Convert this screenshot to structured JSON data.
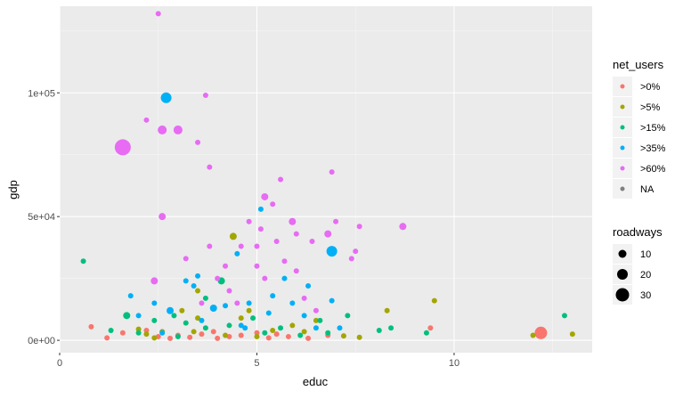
{
  "chart_data": {
    "type": "scatter",
    "title": "",
    "xlabel": "educ",
    "ylabel": "gdp",
    "xlim": [
      0,
      13.5
    ],
    "ylim": [
      -5000,
      135000
    ],
    "x_ticks": [
      0,
      5,
      10
    ],
    "x_tick_labels": [
      "0",
      "5",
      "10"
    ],
    "y_ticks": [
      0,
      50000,
      100000
    ],
    "y_tick_labels": [
      "0e+00",
      "5e+04",
      "1e+05"
    ],
    "grid": true,
    "panel_background": "#ebebeb",
    "legend_placement": "right",
    "color_legend": {
      "title": "net_users",
      "entries": [
        {
          "label": ">0%",
          "color": "#F8766D"
        },
        {
          "label": ">5%",
          "color": "#A3A500"
        },
        {
          "label": ">15%",
          "color": "#00BF7D"
        },
        {
          "label": ">35%",
          "color": "#00B0F6"
        },
        {
          "label": ">60%",
          "color": "#E76BF3"
        },
        {
          "label": "NA",
          "color": "#7f7f7f"
        }
      ]
    },
    "size_legend": {
      "title": "roadways",
      "entries": [
        {
          "label": "10",
          "value": 10
        },
        {
          "label": "20",
          "value": 20
        },
        {
          "label": "30",
          "value": 30
        }
      ]
    },
    "series": [
      {
        "name": ">0%",
        "points": [
          {
            "x": 0.8,
            "y": 5500,
            "r": 3
          },
          {
            "x": 1.2,
            "y": 1000,
            "r": 3
          },
          {
            "x": 1.6,
            "y": 3000,
            "r": 3
          },
          {
            "x": 2.5,
            "y": 1500,
            "r": 3
          },
          {
            "x": 2.8,
            "y": 800,
            "r": 3
          },
          {
            "x": 3.0,
            "y": 2000,
            "r": 3
          },
          {
            "x": 3.3,
            "y": 1200,
            "r": 3
          },
          {
            "x": 3.6,
            "y": 2500,
            "r": 3
          },
          {
            "x": 4.0,
            "y": 800,
            "r": 3
          },
          {
            "x": 4.3,
            "y": 1500,
            "r": 3
          },
          {
            "x": 4.6,
            "y": 2000,
            "r": 3
          },
          {
            "x": 5.0,
            "y": 3000,
            "r": 3
          },
          {
            "x": 5.3,
            "y": 1000,
            "r": 3
          },
          {
            "x": 5.5,
            "y": 2500,
            "r": 3
          },
          {
            "x": 5.8,
            "y": 1500,
            "r": 3
          },
          {
            "x": 6.3,
            "y": 800,
            "r": 3
          },
          {
            "x": 6.8,
            "y": 2000,
            "r": 3
          },
          {
            "x": 9.4,
            "y": 5000,
            "r": 3
          },
          {
            "x": 12.2,
            "y": 3000,
            "r": 7
          },
          {
            "x": 2.2,
            "y": 4000,
            "r": 3
          },
          {
            "x": 3.9,
            "y": 3500,
            "r": 3
          }
        ]
      },
      {
        "name": ">5%",
        "points": [
          {
            "x": 2.0,
            "y": 4500,
            "r": 3
          },
          {
            "x": 2.2,
            "y": 2500,
            "r": 3
          },
          {
            "x": 2.6,
            "y": 3500,
            "r": 3
          },
          {
            "x": 3.1,
            "y": 12000,
            "r": 3
          },
          {
            "x": 3.4,
            "y": 3500,
            "r": 3
          },
          {
            "x": 3.5,
            "y": 9000,
            "r": 3
          },
          {
            "x": 3.5,
            "y": 20000,
            "r": 3
          },
          {
            "x": 4.2,
            "y": 2000,
            "r": 3
          },
          {
            "x": 4.4,
            "y": 42000,
            "r": 4
          },
          {
            "x": 4.8,
            "y": 12000,
            "r": 3
          },
          {
            "x": 5.0,
            "y": 1500,
            "r": 3
          },
          {
            "x": 5.4,
            "y": 4000,
            "r": 3
          },
          {
            "x": 5.9,
            "y": 6000,
            "r": 3
          },
          {
            "x": 6.2,
            "y": 3500,
            "r": 3
          },
          {
            "x": 6.5,
            "y": 8000,
            "r": 3
          },
          {
            "x": 7.2,
            "y": 1800,
            "r": 3
          },
          {
            "x": 7.6,
            "y": 1200,
            "r": 3
          },
          {
            "x": 8.3,
            "y": 12000,
            "r": 3
          },
          {
            "x": 9.5,
            "y": 16000,
            "r": 3
          },
          {
            "x": 12.0,
            "y": 2000,
            "r": 3
          },
          {
            "x": 13.0,
            "y": 2500,
            "r": 3
          },
          {
            "x": 2.4,
            "y": 1000,
            "r": 3
          },
          {
            "x": 4.6,
            "y": 9000,
            "r": 3
          }
        ]
      },
      {
        "name": ">15%",
        "points": [
          {
            "x": 0.6,
            "y": 32000,
            "r": 3
          },
          {
            "x": 1.3,
            "y": 4000,
            "r": 3
          },
          {
            "x": 1.7,
            "y": 10000,
            "r": 4
          },
          {
            "x": 2.0,
            "y": 3000,
            "r": 3
          },
          {
            "x": 2.4,
            "y": 8000,
            "r": 3
          },
          {
            "x": 2.9,
            "y": 10000,
            "r": 3
          },
          {
            "x": 3.2,
            "y": 7000,
            "r": 3
          },
          {
            "x": 3.7,
            "y": 5000,
            "r": 3
          },
          {
            "x": 3.7,
            "y": 17000,
            "r": 3
          },
          {
            "x": 4.1,
            "y": 24000,
            "r": 4
          },
          {
            "x": 4.3,
            "y": 6000,
            "r": 3
          },
          {
            "x": 4.9,
            "y": 9000,
            "r": 3
          },
          {
            "x": 5.2,
            "y": 3000,
            "r": 3
          },
          {
            "x": 5.6,
            "y": 5000,
            "r": 3
          },
          {
            "x": 6.1,
            "y": 2000,
            "r": 3
          },
          {
            "x": 6.6,
            "y": 8000,
            "r": 3
          },
          {
            "x": 6.8,
            "y": 3000,
            "r": 3
          },
          {
            "x": 7.3,
            "y": 10000,
            "r": 3
          },
          {
            "x": 8.1,
            "y": 4000,
            "r": 3
          },
          {
            "x": 8.4,
            "y": 5000,
            "r": 3
          },
          {
            "x": 9.3,
            "y": 3000,
            "r": 3
          },
          {
            "x": 12.8,
            "y": 10000,
            "r": 3
          },
          {
            "x": 3.0,
            "y": 1500,
            "r": 3
          }
        ]
      },
      {
        "name": ">35%",
        "points": [
          {
            "x": 1.8,
            "y": 18000,
            "r": 3
          },
          {
            "x": 2.0,
            "y": 10000,
            "r": 3
          },
          {
            "x": 2.4,
            "y": 15000,
            "r": 3
          },
          {
            "x": 2.7,
            "y": 98000,
            "r": 6
          },
          {
            "x": 2.8,
            "y": 12000,
            "r": 4
          },
          {
            "x": 3.2,
            "y": 24000,
            "r": 3
          },
          {
            "x": 3.5,
            "y": 26000,
            "r": 3
          },
          {
            "x": 3.6,
            "y": 8000,
            "r": 3
          },
          {
            "x": 3.9,
            "y": 13000,
            "r": 4
          },
          {
            "x": 4.2,
            "y": 14000,
            "r": 3
          },
          {
            "x": 4.5,
            "y": 35000,
            "r": 3
          },
          {
            "x": 4.7,
            "y": 5000,
            "r": 3
          },
          {
            "x": 4.8,
            "y": 15000,
            "r": 3
          },
          {
            "x": 5.1,
            "y": 53000,
            "r": 3
          },
          {
            "x": 5.3,
            "y": 11000,
            "r": 3
          },
          {
            "x": 5.7,
            "y": 25000,
            "r": 3
          },
          {
            "x": 5.9,
            "y": 15000,
            "r": 3
          },
          {
            "x": 6.2,
            "y": 10000,
            "r": 3
          },
          {
            "x": 6.5,
            "y": 5000,
            "r": 3
          },
          {
            "x": 6.9,
            "y": 36000,
            "r": 6
          },
          {
            "x": 6.9,
            "y": 16000,
            "r": 3
          },
          {
            "x": 7.1,
            "y": 5000,
            "r": 3
          },
          {
            "x": 2.6,
            "y": 3000,
            "r": 3
          },
          {
            "x": 3.4,
            "y": 22000,
            "r": 3
          },
          {
            "x": 4.6,
            "y": 6000,
            "r": 3
          },
          {
            "x": 5.4,
            "y": 18000,
            "r": 3
          },
          {
            "x": 6.3,
            "y": 22000,
            "r": 3
          }
        ]
      },
      {
        "name": ">60%",
        "points": [
          {
            "x": 1.6,
            "y": 78000,
            "r": 9
          },
          {
            "x": 2.2,
            "y": 89000,
            "r": 3
          },
          {
            "x": 2.4,
            "y": 24000,
            "r": 4
          },
          {
            "x": 2.5,
            "y": 132000,
            "r": 3
          },
          {
            "x": 2.6,
            "y": 50000,
            "r": 4
          },
          {
            "x": 2.6,
            "y": 85000,
            "r": 5
          },
          {
            "x": 3.0,
            "y": 85000,
            "r": 5
          },
          {
            "x": 3.2,
            "y": 33000,
            "r": 3
          },
          {
            "x": 3.5,
            "y": 80000,
            "r": 3
          },
          {
            "x": 3.7,
            "y": 99000,
            "r": 3
          },
          {
            "x": 3.8,
            "y": 38000,
            "r": 3
          },
          {
            "x": 3.8,
            "y": 70000,
            "r": 3
          },
          {
            "x": 4.2,
            "y": 30000,
            "r": 3
          },
          {
            "x": 4.3,
            "y": 20000,
            "r": 3
          },
          {
            "x": 4.5,
            "y": 15000,
            "r": 3
          },
          {
            "x": 4.6,
            "y": 38000,
            "r": 3
          },
          {
            "x": 4.8,
            "y": 48000,
            "r": 3
          },
          {
            "x": 5.0,
            "y": 30000,
            "r": 3
          },
          {
            "x": 5.1,
            "y": 45000,
            "r": 3
          },
          {
            "x": 5.2,
            "y": 58000,
            "r": 4
          },
          {
            "x": 5.4,
            "y": 55000,
            "r": 3
          },
          {
            "x": 5.6,
            "y": 65000,
            "r": 3
          },
          {
            "x": 5.7,
            "y": 32000,
            "r": 3
          },
          {
            "x": 5.9,
            "y": 48000,
            "r": 4
          },
          {
            "x": 6.0,
            "y": 43000,
            "r": 3
          },
          {
            "x": 6.2,
            "y": 17000,
            "r": 3
          },
          {
            "x": 6.4,
            "y": 40000,
            "r": 3
          },
          {
            "x": 6.5,
            "y": 12000,
            "r": 3
          },
          {
            "x": 6.8,
            "y": 43000,
            "r": 4
          },
          {
            "x": 6.9,
            "y": 68000,
            "r": 3
          },
          {
            "x": 7.0,
            "y": 48000,
            "r": 3
          },
          {
            "x": 7.4,
            "y": 33000,
            "r": 3
          },
          {
            "x": 7.6,
            "y": 46000,
            "r": 3
          },
          {
            "x": 8.7,
            "y": 46000,
            "r": 4
          },
          {
            "x": 5.5,
            "y": 40000,
            "r": 3
          },
          {
            "x": 4.0,
            "y": 25000,
            "r": 3
          },
          {
            "x": 6.0,
            "y": 28000,
            "r": 3
          },
          {
            "x": 7.5,
            "y": 36000,
            "r": 3
          },
          {
            "x": 5.0,
            "y": 38000,
            "r": 3
          },
          {
            "x": 3.6,
            "y": 15000,
            "r": 3
          },
          {
            "x": 5.2,
            "y": 25000,
            "r": 3
          }
        ]
      }
    ]
  }
}
